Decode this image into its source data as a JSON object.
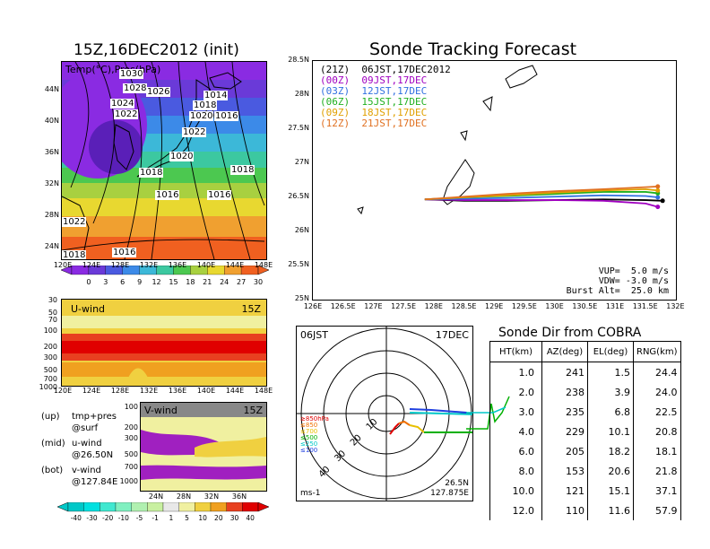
{
  "left": {
    "title": "15Z,16DEC2012 (init)",
    "map_label": "Temp(°C),Pres(hPa)",
    "lat_ticks": [
      "44N",
      "40N",
      "36N",
      "32N",
      "28N",
      "24N"
    ],
    "lon_ticks": [
      "120E",
      "124E",
      "128E",
      "132E",
      "136E",
      "140E",
      "144E",
      "148E"
    ],
    "isobars": [
      "1030",
      "1028",
      "1026",
      "1024",
      "1022",
      "1014",
      "1018",
      "1020",
      "1016",
      "1022",
      "1020",
      "1018",
      "1018",
      "1016",
      "1016",
      "1022",
      "1018",
      "1016"
    ],
    "temp_colorbar": [
      "0",
      "3",
      "6",
      "9",
      "12",
      "15",
      "18",
      "21",
      "24",
      "27",
      "30"
    ],
    "temp_colors": [
      "#8a2be2",
      "#6a3ad8",
      "#4a5ae0",
      "#3c8ae8",
      "#3cb8d8",
      "#3cc8a0",
      "#4cc850",
      "#a8d040",
      "#e8d830",
      "#f0a030",
      "#f06020"
    ],
    "uwind": {
      "label": "U-wind",
      "time": "15Z",
      "p_ticks": [
        "30",
        "50",
        "70",
        "100",
        "200",
        "300",
        "500",
        "700",
        "1000"
      ],
      "lon_ticks": [
        "120E",
        "124E",
        "128E",
        "132E",
        "136E",
        "140E",
        "144E",
        "148E"
      ]
    },
    "vwind": {
      "label": "V-wind",
      "time": "15Z",
      "p_ticks": [
        "100",
        "200",
        "300",
        "500",
        "700",
        "1000"
      ],
      "lat_ticks": [
        "24N",
        "28N",
        "32N",
        "36N"
      ]
    },
    "wind_colorbar": [
      "-40",
      "-30",
      "-20",
      "-10",
      "-5",
      "-1",
      "1",
      "5",
      "10",
      "20",
      "30",
      "40"
    ],
    "wind_colors": [
      "#00c8c8",
      "#00e0e0",
      "#40e8d0",
      "#80f0c0",
      "#b0f0b0",
      "#c8f0a0",
      "#e8e8e8",
      "#f0f0a0",
      "#f0d040",
      "#f0a020",
      "#e84020",
      "#e00000"
    ],
    "legend": [
      {
        "a": "(up)",
        "b": "tmp+pres"
      },
      {
        "a": "",
        "b": "@surf"
      },
      {
        "a": "(mid)",
        "b": "u-wind"
      },
      {
        "a": "",
        "b": "@26.50N"
      },
      {
        "a": "(bot)",
        "b": "v-wind"
      },
      {
        "a": "",
        "b": "@127.84E"
      }
    ]
  },
  "right": {
    "title": "Sonde Tracking Forecast",
    "lat_ticks": [
      "28.5N",
      "28N",
      "27.5N",
      "27N",
      "26.5N",
      "26N",
      "25.5N",
      "25N"
    ],
    "lon_ticks": [
      "126E",
      "126.5E",
      "127E",
      "127.5E",
      "128E",
      "128.5E",
      "129E",
      "129.5E",
      "130E",
      "130.5E",
      "131E",
      "131.5E",
      "132E"
    ],
    "runs": [
      {
        "label": "(21Z)  06JST,17DEC2012",
        "color": "#000000"
      },
      {
        "label": "(00Z)  09JST,17DEC",
        "color": "#a000c0"
      },
      {
        "label": "(03Z)  12JST,17DEC",
        "color": "#3070e0"
      },
      {
        "label": "(06Z)  15JST,17DEC",
        "color": "#20b020"
      },
      {
        "label": "(09Z)  18JST,17DEC",
        "color": "#e0a000"
      },
      {
        "label": "(12Z)  21JST,17DEC",
        "color": "#e07020"
      }
    ],
    "params": [
      "VUP=  5.0 m/s",
      "VDW= -3.0 m/s",
      "Burst Alt=  25.0 km"
    ]
  },
  "polar": {
    "time": "06JST",
    "date": "17DEC",
    "lat": "26.5N",
    "lon": "127.875E",
    "unit": "ms-1",
    "ring_labels": [
      "10",
      "20",
      "30",
      "40"
    ],
    "levels": [
      {
        "label": "≥850hPa",
        "color": "#e00000"
      },
      {
        "label": "≤850",
        "color": "#f07000"
      },
      {
        "label": "≤700",
        "color": "#e8c000"
      },
      {
        "label": "≤500",
        "color": "#00b000"
      },
      {
        "label": "≤250",
        "color": "#00c8c8"
      },
      {
        "label": "≤100",
        "color": "#2040e0"
      }
    ]
  },
  "table": {
    "title": "Sonde Dir from COBRA",
    "headers": [
      "HT(km)",
      "AZ(deg)",
      "EL(deg)",
      "RNG(km)"
    ],
    "rows": [
      [
        "1.0",
        "241",
        "1.5",
        "24.4"
      ],
      [
        "2.0",
        "238",
        "3.9",
        "24.0"
      ],
      [
        "3.0",
        "235",
        "6.8",
        "22.5"
      ],
      [
        "4.0",
        "229",
        "10.1",
        "20.8"
      ],
      [
        "6.0",
        "205",
        "18.2",
        "18.1"
      ],
      [
        "8.0",
        "153",
        "20.6",
        "21.8"
      ],
      [
        "10.0",
        "121",
        "15.1",
        "37.1"
      ],
      [
        "12.0",
        "110",
        "11.6",
        "57.9"
      ]
    ]
  },
  "chart_data": [
    {
      "type": "heatmap",
      "title": "15Z,16DEC2012 (init)",
      "variable": "Temp(°C),Pres(hPa)",
      "xlabel": "",
      "ylabel": "",
      "x_range": [
        "120E",
        "148E"
      ],
      "y_range": [
        "24N",
        "44N"
      ],
      "color_levels": [
        0,
        3,
        6,
        9,
        12,
        15,
        18,
        21,
        24,
        27,
        30
      ],
      "isobar_labels_hPa": [
        1030,
        1028,
        1026,
        1024,
        1022,
        1020,
        1018,
        1016,
        1014
      ]
    },
    {
      "type": "heatmap",
      "title": "U-wind",
      "time": "15Z",
      "x_range": [
        "120E",
        "148E"
      ],
      "pressure_levels_hPa": [
        30,
        50,
        70,
        100,
        200,
        300,
        500,
        700,
        1000
      ],
      "color_levels": [
        -40,
        -30,
        -20,
        -10,
        -5,
        -1,
        1,
        5,
        10,
        20,
        30,
        40
      ]
    },
    {
      "type": "heatmap",
      "title": "V-wind",
      "time": "15Z",
      "x_range": [
        "24N",
        "36N"
      ],
      "pressure_levels_hPa": [
        100,
        200,
        300,
        500,
        700,
        1000
      ],
      "color_levels": [
        -40,
        -30,
        -20,
        -10,
        -5,
        -1,
        1,
        5,
        10,
        20,
        30,
        40
      ]
    },
    {
      "type": "line",
      "title": "Sonde Tracking Forecast",
      "xlim": [
        126,
        132
      ],
      "ylim": [
        25,
        28.5
      ],
      "series": [
        {
          "name": "(21Z) 06JST,17DEC2012",
          "x": [
            127.85,
            128.5,
            129.2,
            130.0,
            130.8,
            131.5,
            131.78
          ],
          "y": [
            26.47,
            26.45,
            26.45,
            26.46,
            26.47,
            26.46,
            26.45
          ]
        },
        {
          "name": "(00Z) 09JST,17DEC",
          "x": [
            127.85,
            128.5,
            129.2,
            130.0,
            130.8,
            131.5,
            131.7
          ],
          "y": [
            26.47,
            26.46,
            26.46,
            26.46,
            26.45,
            26.41,
            26.36
          ]
        },
        {
          "name": "(03Z) 12JST,17DEC",
          "x": [
            127.85,
            128.5,
            129.2,
            130.0,
            130.8,
            131.5,
            131.7
          ],
          "y": [
            26.47,
            26.48,
            26.49,
            26.51,
            26.53,
            26.52,
            26.5
          ]
        },
        {
          "name": "(06Z) 15JST,17DEC",
          "x": [
            127.85,
            128.5,
            129.2,
            130.0,
            130.8,
            131.5,
            131.7
          ],
          "y": [
            26.47,
            26.5,
            26.52,
            26.55,
            26.58,
            26.58,
            26.56
          ]
        },
        {
          "name": "(09Z) 18JST,17DEC",
          "x": [
            127.85,
            128.5,
            129.2,
            130.0,
            130.8,
            131.5,
            131.7
          ],
          "y": [
            26.47,
            26.5,
            26.53,
            26.57,
            26.6,
            26.62,
            26.6
          ]
        },
        {
          "name": "(12Z) 21JST,17DEC",
          "x": [
            127.85,
            128.5,
            129.2,
            130.0,
            130.8,
            131.5,
            131.7
          ],
          "y": [
            26.47,
            26.51,
            26.55,
            26.59,
            26.62,
            26.65,
            26.66
          ]
        }
      ]
    },
    {
      "type": "table",
      "title": "Sonde Dir from COBRA",
      "columns": [
        "HT(km)",
        "AZ(deg)",
        "EL(deg)",
        "RNG(km)"
      ]
    }
  ]
}
